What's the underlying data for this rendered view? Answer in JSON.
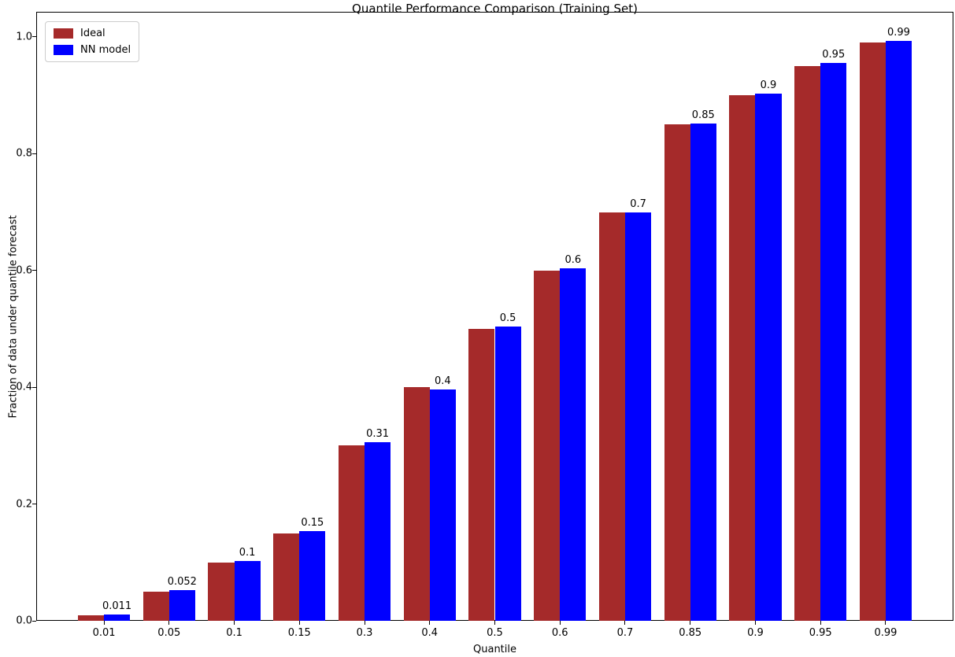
{
  "chart_data": {
    "type": "bar",
    "title": "Quantile Performance Comparison (Training Set)",
    "xlabel": "Quantile",
    "ylabel": "Fraction of data under quantile forecast",
    "categories": [
      "0.01",
      "0.05",
      "0.1",
      "0.15",
      "0.3",
      "0.4",
      "0.5",
      "0.6",
      "0.7",
      "0.85",
      "0.9",
      "0.95",
      "0.99"
    ],
    "series": [
      {
        "name": "Ideal",
        "color": "#a52a2a",
        "values": [
          0.01,
          0.05,
          0.1,
          0.15,
          0.3,
          0.4,
          0.5,
          0.6,
          0.7,
          0.85,
          0.9,
          0.95,
          0.99
        ]
      },
      {
        "name": "NN model",
        "color": "#0000ff",
        "values": [
          0.011,
          0.052,
          0.102,
          0.153,
          0.306,
          0.396,
          0.504,
          0.604,
          0.7,
          0.851,
          0.903,
          0.955,
          0.993
        ]
      }
    ],
    "bar_labels": [
      "0.011",
      "0.052",
      "0.1",
      "0.15",
      "0.31",
      "0.4",
      "0.5",
      "0.6",
      "0.7",
      "0.85",
      "0.9",
      "0.95",
      "0.99"
    ],
    "yticks": [
      {
        "value": 0.0,
        "label": "0.0"
      },
      {
        "value": 0.2,
        "label": "0.2"
      },
      {
        "value": 0.4,
        "label": "0.4"
      },
      {
        "value": 0.6,
        "label": "0.6"
      },
      {
        "value": 0.8,
        "label": "0.8"
      },
      {
        "value": 1.0,
        "label": "1.0"
      }
    ],
    "ylim": [
      0,
      1.043
    ],
    "grid": false,
    "legend_position": "top-left",
    "axis_color": "#000000",
    "background_color": "#ffffff"
  }
}
